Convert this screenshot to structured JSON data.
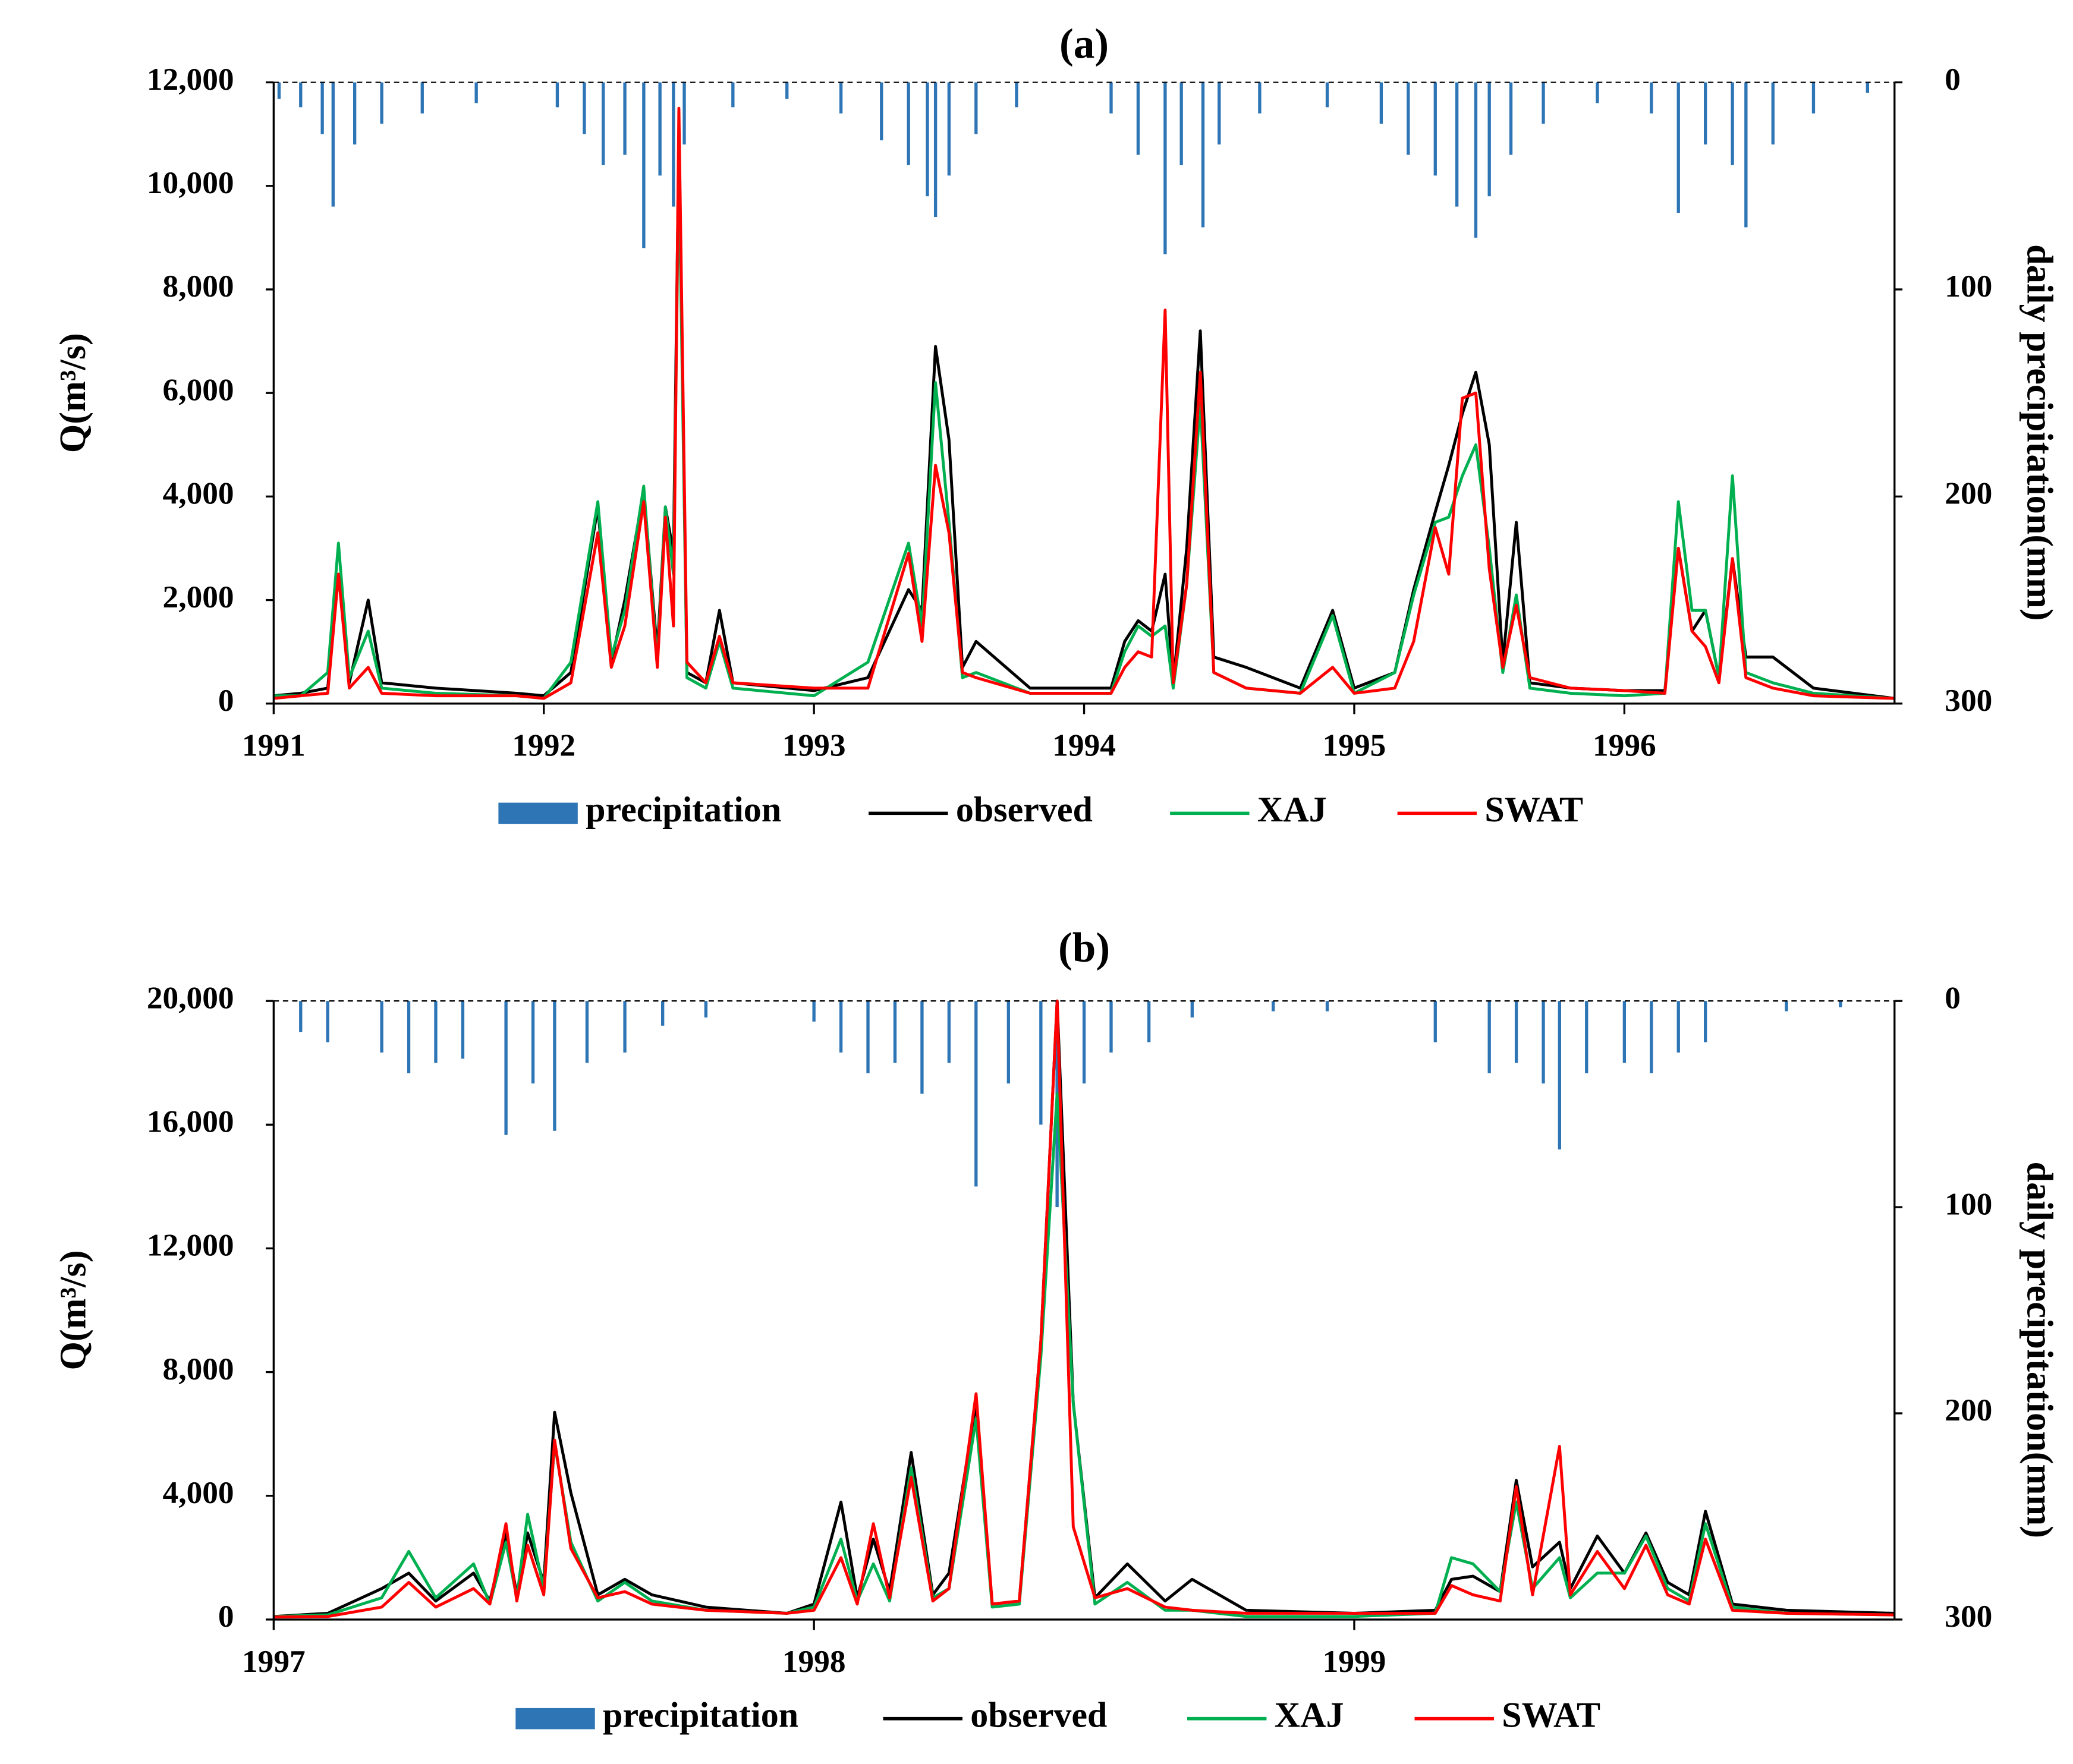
{
  "chart_data": [
    {
      "type": "line",
      "title": "(a)",
      "y_label": "Q(m³/s)",
      "y2_label": "daily precipitation(mm)",
      "legend": "bottom",
      "xlim": [
        1991,
        1997
      ],
      "xticks": [
        1991,
        1992,
        1993,
        1994,
        1995,
        1996
      ],
      "ylim": [
        0,
        12000
      ],
      "yticks": [
        0,
        {
          "value": 2000,
          "label": "2,000"
        },
        {
          "value": 4000,
          "label": "4,000"
        },
        {
          "value": 6000,
          "label": "6,000"
        },
        {
          "value": 8000,
          "label": "8,000"
        },
        {
          "value": 10000,
          "label": "10,000"
        },
        {
          "value": 12000,
          "label": "12,000"
        }
      ],
      "y2lim": [
        0,
        300
      ],
      "y2ticks": [
        0,
        100,
        200,
        300
      ],
      "y2_inverted": true,
      "x": [
        1991.0,
        1991.1,
        1991.2,
        1991.24,
        1991.28,
        1991.35,
        1991.4,
        1991.6,
        1991.9,
        1992.0,
        1992.1,
        1992.2,
        1992.25,
        1992.3,
        1992.37,
        1992.42,
        1992.45,
        1992.48,
        1992.5,
        1992.53,
        1992.6,
        1992.65,
        1992.7,
        1993.0,
        1993.2,
        1993.35,
        1993.4,
        1993.45,
        1993.5,
        1993.55,
        1993.6,
        1993.8,
        1994.1,
        1994.15,
        1994.2,
        1994.25,
        1994.3,
        1994.33,
        1994.38,
        1994.43,
        1994.48,
        1994.6,
        1994.8,
        1994.92,
        1995.0,
        1995.15,
        1995.22,
        1995.3,
        1995.35,
        1995.4,
        1995.45,
        1995.5,
        1995.55,
        1995.6,
        1995.65,
        1995.8,
        1996.0,
        1996.15,
        1996.2,
        1996.25,
        1996.3,
        1996.35,
        1996.4,
        1996.45,
        1996.55,
        1996.7,
        1997.0
      ],
      "series": [
        {
          "name": "precipitation",
          "color": "#2e75b6",
          "type": "bar",
          "axis": "y2",
          "x": [
            1991.02,
            1991.1,
            1991.18,
            1991.22,
            1991.3,
            1991.4,
            1991.55,
            1991.75,
            1992.05,
            1992.15,
            1992.22,
            1992.3,
            1992.37,
            1992.43,
            1992.48,
            1992.52,
            1992.7,
            1992.9,
            1993.1,
            1993.25,
            1993.35,
            1993.42,
            1993.45,
            1993.5,
            1993.6,
            1993.75,
            1994.1,
            1994.2,
            1994.3,
            1994.36,
            1994.44,
            1994.5,
            1994.65,
            1994.9,
            1995.1,
            1995.2,
            1995.3,
            1995.38,
            1995.45,
            1995.5,
            1995.58,
            1995.7,
            1995.9,
            1996.1,
            1996.2,
            1996.3,
            1996.4,
            1996.45,
            1996.55,
            1996.7,
            1996.9
          ],
          "values": [
            8,
            12,
            25,
            60,
            30,
            20,
            15,
            10,
            12,
            25,
            40,
            35,
            80,
            45,
            60,
            30,
            12,
            8,
            15,
            28,
            40,
            55,
            65,
            45,
            25,
            12,
            15,
            35,
            83,
            40,
            70,
            30,
            15,
            12,
            20,
            35,
            45,
            60,
            75,
            55,
            35,
            20,
            10,
            15,
            63,
            30,
            40,
            70,
            30,
            15,
            5
          ]
        },
        {
          "name": "observed",
          "color": "#000000",
          "values": [
            150,
            200,
            300,
            2500,
            400,
            2000,
            400,
            300,
            200,
            150,
            600,
            3800,
            800,
            2000,
            4100,
            1000,
            3800,
            2900,
            11000,
            600,
            400,
            1800,
            400,
            250,
            500,
            2200,
            1800,
            6900,
            5100,
            700,
            1200,
            300,
            300,
            1200,
            1600,
            1400,
            2500,
            400,
            3000,
            7200,
            900,
            700,
            300,
            1800,
            300,
            600,
            2200,
            3700,
            4600,
            5600,
            6400,
            5000,
            800,
            3500,
            400,
            300,
            250,
            250,
            3000,
            1400,
            1800,
            500,
            2800,
            900,
            900,
            300,
            100
          ]
        },
        {
          "name": "XAJ",
          "color": "#00b050",
          "values": [
            150,
            150,
            600,
            3100,
            500,
            1400,
            300,
            200,
            150,
            100,
            800,
            3900,
            900,
            1800,
            4200,
            800,
            3800,
            2500,
            10500,
            500,
            300,
            1200,
            300,
            150,
            800,
            3100,
            1500,
            6200,
            3500,
            500,
            600,
            200,
            200,
            1000,
            1500,
            1300,
            1500,
            300,
            2300,
            5800,
            600,
            300,
            200,
            1700,
            200,
            600,
            2100,
            3500,
            3600,
            4400,
            5000,
            3000,
            600,
            2100,
            300,
            200,
            150,
            200,
            3900,
            1800,
            1800,
            500,
            4400,
            600,
            400,
            200,
            100
          ]
        },
        {
          "name": "SWAT",
          "color": "#ff0000",
          "values": [
            100,
            150,
            200,
            2500,
            300,
            700,
            200,
            150,
            150,
            100,
            400,
            3300,
            700,
            1500,
            3900,
            700,
            3600,
            1500,
            11500,
            800,
            400,
            1300,
            400,
            300,
            300,
            2900,
            1200,
            4600,
            3300,
            600,
            500,
            200,
            200,
            700,
            1000,
            900,
            7600,
            400,
            2300,
            6400,
            600,
            300,
            200,
            700,
            200,
            300,
            1200,
            3400,
            2500,
            5900,
            6000,
            2600,
            700,
            1900,
            500,
            300,
            250,
            200,
            3000,
            1400,
            1100,
            400,
            2800,
            500,
            300,
            150,
            100
          ]
        }
      ]
    },
    {
      "type": "line",
      "title": "(b)",
      "y_label": "Q(m³/s)",
      "y2_label": "daily precipitation(mm)",
      "legend": "bottom",
      "xlim": [
        1997,
        2000
      ],
      "xticks": [
        1997,
        1998,
        1999
      ],
      "ylim": [
        0,
        20000
      ],
      "yticks": [
        0,
        {
          "value": 4000,
          "label": "4,000"
        },
        {
          "value": 8000,
          "label": "8,000"
        },
        {
          "value": 12000,
          "label": "12,000"
        },
        {
          "value": 16000,
          "label": "16,000"
        },
        {
          "value": 20000,
          "label": "20,000"
        }
      ],
      "y2lim": [
        0,
        300
      ],
      "y2ticks": [
        0,
        100,
        200,
        300
      ],
      "y2_inverted": true,
      "x": [
        1997.0,
        1997.1,
        1997.2,
        1997.25,
        1997.3,
        1997.37,
        1997.4,
        1997.43,
        1997.45,
        1997.47,
        1997.5,
        1997.52,
        1997.55,
        1997.6,
        1997.65,
        1997.7,
        1997.8,
        1997.95,
        1998.0,
        1998.05,
        1998.08,
        1998.11,
        1998.14,
        1998.18,
        1998.22,
        1998.25,
        1998.3,
        1998.33,
        1998.38,
        1998.42,
        1998.45,
        1998.48,
        1998.52,
        1998.58,
        1998.65,
        1998.7,
        1998.8,
        1999.0,
        1999.15,
        1999.18,
        1999.22,
        1999.27,
        1999.3,
        1999.33,
        1999.38,
        1999.4,
        1999.45,
        1999.5,
        1999.54,
        1999.58,
        1999.62,
        1999.65,
        1999.7,
        1999.8,
        2000.0
      ],
      "series": [
        {
          "name": "precipitation",
          "color": "#2e75b6",
          "type": "bar",
          "axis": "y2",
          "x": [
            1997.05,
            1997.1,
            1997.2,
            1997.25,
            1997.3,
            1997.35,
            1997.43,
            1997.48,
            1997.52,
            1997.58,
            1997.65,
            1997.72,
            1997.8,
            1998.0,
            1998.05,
            1998.1,
            1998.15,
            1998.2,
            1998.25,
            1998.3,
            1998.36,
            1998.42,
            1998.45,
            1998.5,
            1998.55,
            1998.62,
            1998.7,
            1998.85,
            1998.95,
            1999.15,
            1999.25,
            1999.3,
            1999.35,
            1999.38,
            1999.43,
            1999.5,
            1999.55,
            1999.6,
            1999.65,
            1999.8,
            1999.9
          ],
          "values": [
            15,
            20,
            25,
            35,
            30,
            28,
            65,
            40,
            63,
            30,
            25,
            12,
            8,
            10,
            25,
            35,
            30,
            45,
            30,
            90,
            40,
            60,
            100,
            40,
            25,
            20,
            8,
            5,
            5,
            20,
            35,
            30,
            40,
            72,
            35,
            30,
            35,
            25,
            20,
            5,
            3
          ]
        },
        {
          "name": "observed",
          "color": "#000000",
          "values": [
            100,
            200,
            1000,
            1500,
            600,
            1500,
            600,
            2800,
            800,
            2800,
            1200,
            6700,
            4100,
            800,
            1300,
            800,
            400,
            200,
            500,
            3800,
            700,
            2600,
            900,
            5400,
            800,
            1500,
            7000,
            500,
            600,
            9000,
            20000,
            7000,
            700,
            1800,
            600,
            1300,
            300,
            200,
            300,
            1300,
            1400,
            900,
            4500,
            1700,
            2500,
            1000,
            2700,
            1500,
            2800,
            1200,
            800,
            3500,
            500,
            300,
            200
          ]
        },
        {
          "name": "XAJ",
          "color": "#00b050",
          "values": [
            100,
            150,
            700,
            2200,
            700,
            1800,
            500,
            2500,
            700,
            3400,
            1000,
            5700,
            2500,
            600,
            1200,
            600,
            300,
            200,
            400,
            2600,
            600,
            1800,
            600,
            4900,
            700,
            1000,
            6500,
            400,
            500,
            8500,
            17000,
            7000,
            500,
            1200,
            300,
            300,
            100,
            100,
            200,
            2000,
            1800,
            900,
            3800,
            1000,
            2000,
            700,
            1500,
            1500,
            2700,
            1000,
            600,
            3100,
            400,
            200,
            150
          ]
        },
        {
          "name": "SWAT",
          "color": "#ff0000",
          "values": [
            80,
            100,
            400,
            1200,
            400,
            1000,
            500,
            3100,
            600,
            2400,
            800,
            5800,
            2300,
            700,
            900,
            500,
            300,
            200,
            300,
            2000,
            500,
            3100,
            700,
            4600,
            600,
            1000,
            7300,
            500,
            600,
            9000,
            20000,
            3000,
            700,
            1000,
            400,
            300,
            200,
            200,
            200,
            1100,
            800,
            600,
            4300,
            800,
            5600,
            800,
            2200,
            1000,
            2400,
            800,
            500,
            2600,
            300,
            200,
            150
          ]
        }
      ]
    }
  ]
}
